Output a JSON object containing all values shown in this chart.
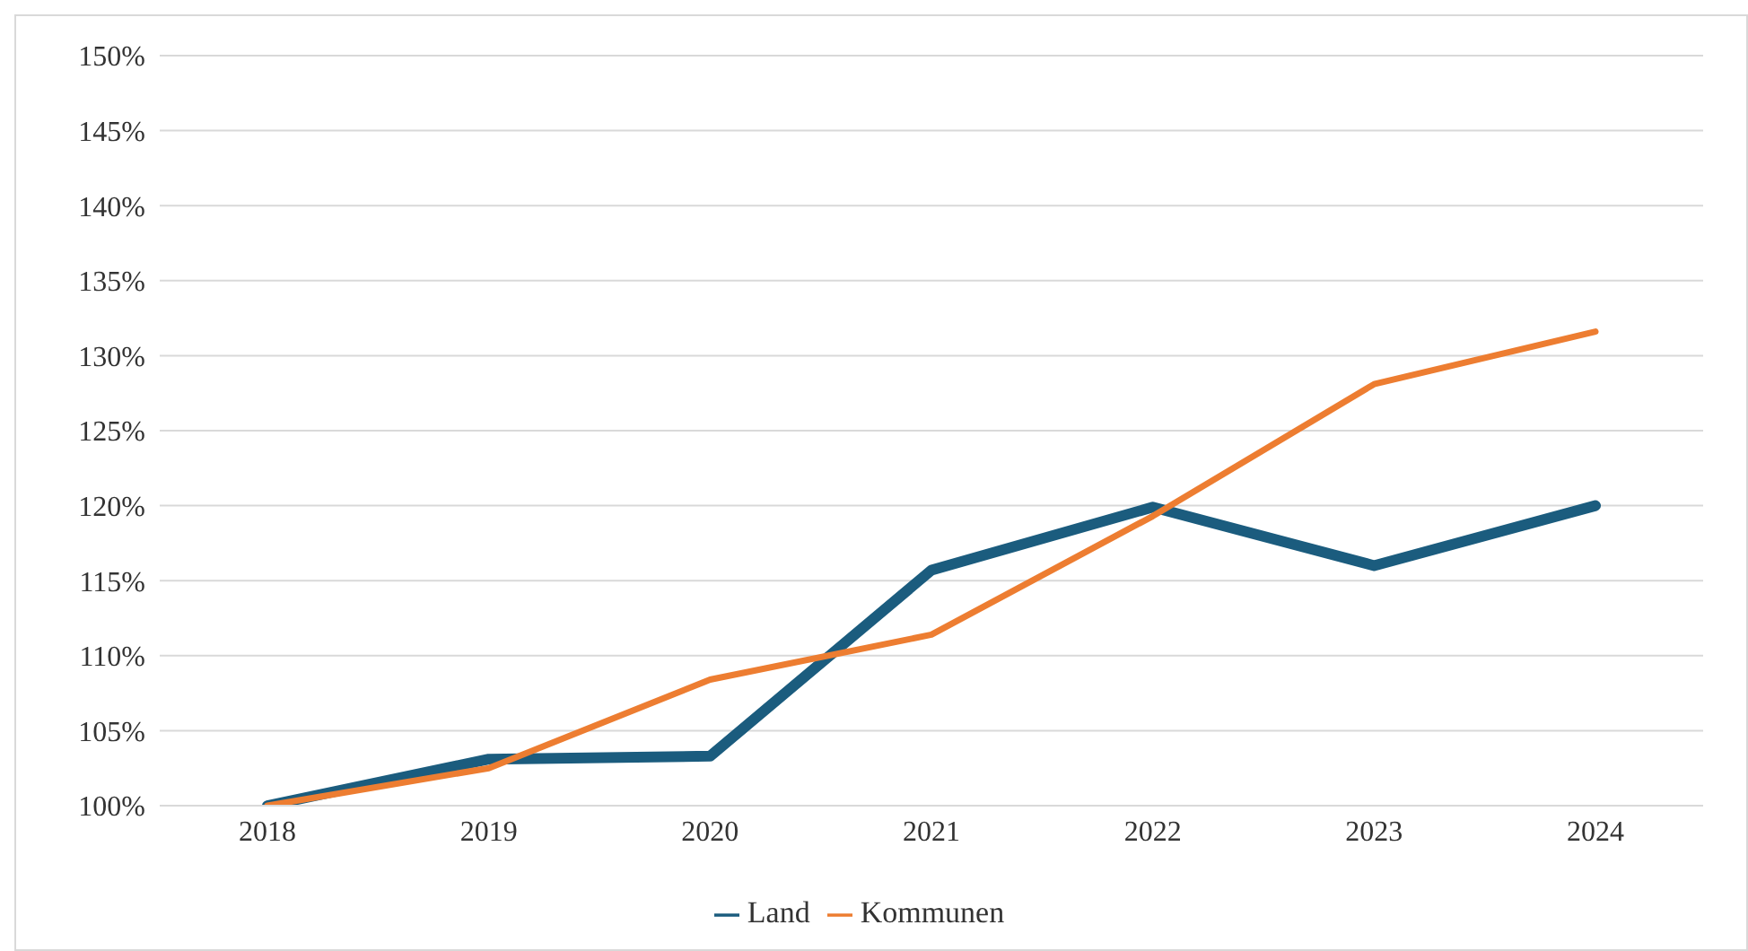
{
  "chart_data": {
    "type": "line",
    "categories": [
      "2018",
      "2019",
      "2020",
      "2021",
      "2022",
      "2023",
      "2024"
    ],
    "series": [
      {
        "name": "Land",
        "color": "#1b5c7e",
        "values": [
          100,
          103.1,
          103.3,
          115.7,
          119.9,
          116,
          120
        ]
      },
      {
        "name": "Kommunen",
        "color": "#ed7d31",
        "values": [
          100,
          102.5,
          108.4,
          111.4,
          119.3,
          128.1,
          131.6
        ]
      }
    ],
    "ylim": [
      100,
      150
    ],
    "yticks": [
      {
        "value": 100,
        "label": "100%"
      },
      {
        "value": 105,
        "label": "105%"
      },
      {
        "value": 110,
        "label": "110%"
      },
      {
        "value": 115,
        "label": "115%"
      },
      {
        "value": 120,
        "label": "120%"
      },
      {
        "value": 125,
        "label": "125%"
      },
      {
        "value": 130,
        "label": "130%"
      },
      {
        "value": 135,
        "label": "135%"
      },
      {
        "value": 140,
        "label": "140%"
      },
      {
        "value": 145,
        "label": "145%"
      },
      {
        "value": 150,
        "label": "150%"
      }
    ],
    "grid": "y",
    "legend": "bottom",
    "marker": "none",
    "line_style": "solid"
  }
}
